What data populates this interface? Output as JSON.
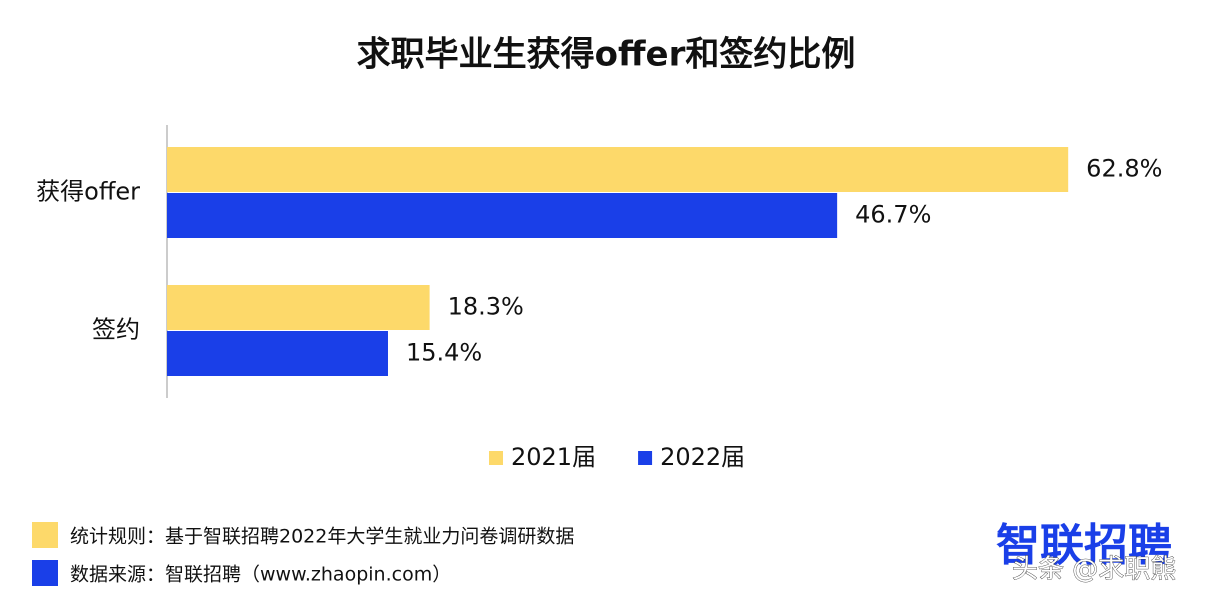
{
  "chart_data": {
    "type": "bar",
    "orientation": "horizontal",
    "title": "求职毕业生获得offer和签约比例",
    "categories": [
      "获得offer",
      "签约"
    ],
    "series": [
      {
        "name": "2021届",
        "color": "#fdd96a",
        "values": [
          62.8,
          18.3
        ],
        "value_labels": [
          "62.8%",
          "18.3%"
        ]
      },
      {
        "name": "2022届",
        "color": "#1a3fe8",
        "values": [
          46.7,
          15.4
        ],
        "value_labels": [
          "46.7%",
          "15.4%"
        ]
      }
    ],
    "legend": "bottom"
  },
  "footnotes": [
    "统计规则：基于智联招聘2022年大学生就业力问卷调研数据",
    "数据来源：智联招聘（www.zhaopin.com）"
  ],
  "logo": "智联招聘",
  "watermark": "头条 @求职熊"
}
